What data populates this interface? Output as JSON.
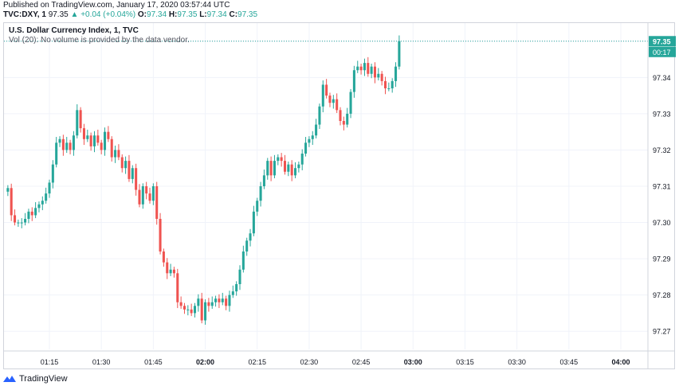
{
  "header": {
    "published": "Published on TradingView.com, January 17, 2020 03:57:44 UTC",
    "symbol": "TVC:DXY, 1",
    "last": "97.35",
    "change": "+0.04 (+0.04%)",
    "o_label": "O:",
    "o": "97.34",
    "h_label": "H:",
    "h": "97.35",
    "l_label": "L:",
    "l": "97.34",
    "c_label": "C:",
    "c": "97.35"
  },
  "legend": {
    "title": "U.S. Dollar Currency Index, 1, TVC",
    "volume": "Vol (20): No volume is provided by the data vendor."
  },
  "footer": {
    "brand": "TradingView"
  },
  "colors": {
    "up": "#26a69a",
    "down": "#ef5350",
    "grid": "#f0f3fa",
    "axis_text": "#131722"
  },
  "chart_data": {
    "type": "candlestick",
    "ylim": [
      97.265,
      97.355
    ],
    "y_ticks": [
      "97.27",
      "97.28",
      "97.29",
      "97.30",
      "97.31",
      "97.32",
      "97.33",
      "97.34",
      "97.35"
    ],
    "x_ticks": [
      "01:15",
      "01:30",
      "01:45",
      "02:00",
      "02:15",
      "02:30",
      "02:45",
      "03:00",
      "03:15",
      "03:30",
      "03:45",
      "04:00"
    ],
    "x_start": "01:03",
    "price_label": "97.35",
    "countdown_label": "00:17",
    "grid": true,
    "closes": [
      97.3095,
      97.302,
      97.3,
      97.3,
      97.3,
      97.301,
      97.303,
      97.302,
      97.304,
      97.305,
      97.306,
      97.308,
      97.311,
      97.316,
      97.322,
      97.323,
      97.32,
      97.322,
      97.32,
      97.324,
      97.331,
      97.326,
      97.323,
      97.324,
      97.321,
      97.324,
      97.322,
      97.32,
      97.325,
      97.323,
      97.318,
      97.32,
      97.318,
      97.315,
      97.317,
      97.312,
      97.315,
      97.309,
      97.305,
      97.31,
      97.308,
      97.306,
      97.31,
      97.301,
      97.292,
      97.289,
      97.286,
      97.287,
      97.286,
      97.278,
      97.277,
      97.276,
      97.276,
      97.275,
      97.277,
      97.279,
      97.273,
      97.278,
      97.277,
      97.278,
      97.279,
      97.278,
      97.279,
      97.277,
      97.28,
      97.281,
      97.283,
      97.287,
      97.292,
      97.295,
      97.297,
      97.303,
      97.306,
      97.31,
      97.313,
      97.317,
      97.313,
      97.317,
      97.318,
      97.317,
      97.314,
      97.316,
      97.313,
      97.315,
      97.316,
      97.319,
      97.322,
      97.323,
      97.324,
      97.327,
      97.332,
      97.338,
      97.335,
      97.333,
      97.334,
      97.331,
      97.328,
      97.327,
      97.33,
      97.336,
      97.342,
      97.343,
      97.342,
      97.344,
      97.341,
      97.343,
      97.34,
      97.341,
      97.339,
      97.337,
      97.337,
      97.339,
      97.343,
      97.35
    ]
  }
}
